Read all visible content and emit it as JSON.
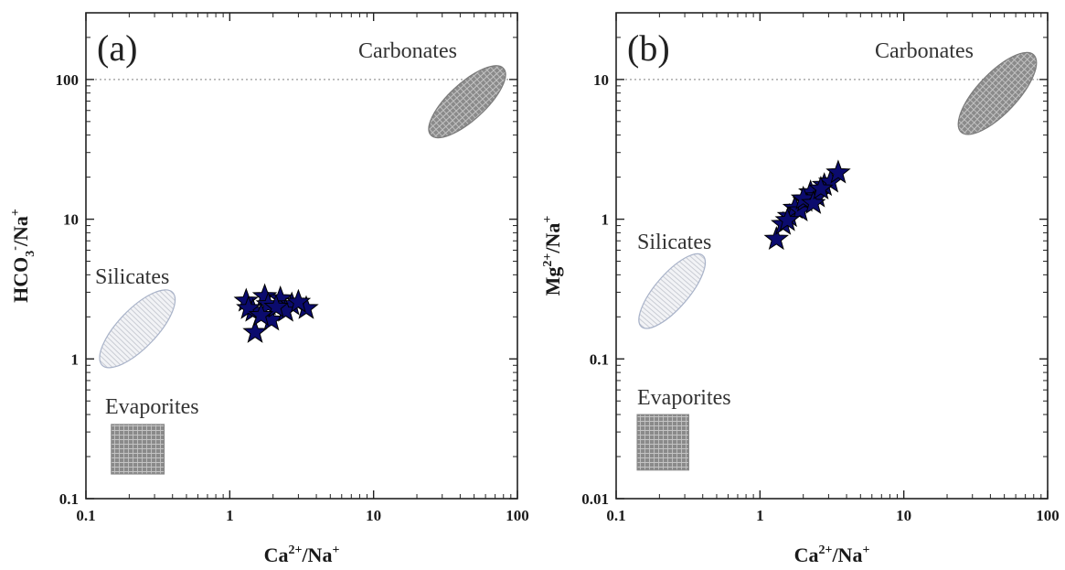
{
  "chart_data": [
    {
      "type": "scatter",
      "panel_label": "(a)",
      "xlabel": "Ca2+/Na+",
      "ylabel": "HCO3-/Na+",
      "xscale": "log",
      "yscale": "log",
      "xlim": [
        0.1,
        100
      ],
      "ylim": [
        0.1,
        300
      ],
      "x_ticks": [
        "0.1",
        "1",
        "10",
        "100"
      ],
      "y_ticks": [
        "0.1",
        "1",
        "10",
        "100"
      ],
      "reference_line_y": 100,
      "grid": false,
      "regions": [
        {
          "name": "Carbonates",
          "shape": "ellipse",
          "fill": "#8c8c8c",
          "pattern": "crosshatch",
          "x_range": [
            25,
            80
          ],
          "y_range": [
            40,
            120
          ]
        },
        {
          "name": "Silicates",
          "shape": "ellipse",
          "fill": "#e6e8ee",
          "pattern": "vertical-lines",
          "x_range": [
            0.13,
            0.4
          ],
          "y_range": [
            0.9,
            3.0
          ]
        },
        {
          "name": "Evaporites",
          "shape": "rectangle",
          "fill": "#9a9a9a",
          "pattern": "crosshatch",
          "x_range": [
            0.15,
            0.35
          ],
          "y_range": [
            0.15,
            0.34
          ]
        }
      ],
      "series": [
        {
          "marker": "star",
          "color": "#0b0b6e",
          "x": [
            1.3,
            1.75,
            2.25,
            2.7,
            3.4,
            1.5,
            1.95,
            1.45,
            1.85,
            2.45,
            3.0,
            1.35,
            2.1,
            1.65
          ],
          "y": [
            2.6,
            2.8,
            2.7,
            2.45,
            2.3,
            1.55,
            1.9,
            2.2,
            2.45,
            2.2,
            2.55,
            2.3,
            2.35,
            2.05
          ]
        }
      ]
    },
    {
      "type": "scatter",
      "panel_label": "(b)",
      "xlabel": "Ca2+/Na+",
      "ylabel": "Mg2+/Na+",
      "xscale": "log",
      "yscale": "log",
      "xlim": [
        0.1,
        100
      ],
      "ylim": [
        0.01,
        30
      ],
      "x_ticks": [
        "0.1",
        "1",
        "10",
        "100"
      ],
      "y_ticks": [
        "0.01",
        "0.1",
        "1",
        "10"
      ],
      "reference_line_y": 10,
      "grid": false,
      "regions": [
        {
          "name": "Carbonates",
          "shape": "ellipse",
          "fill": "#8c8c8c",
          "pattern": "crosshatch",
          "x_range": [
            25,
            80
          ],
          "y_range": [
            4.2,
            15
          ]
        },
        {
          "name": "Silicates",
          "shape": "ellipse",
          "fill": "#e6e8ee",
          "pattern": "vertical-lines",
          "x_range": [
            0.15,
            0.4
          ],
          "y_range": [
            0.17,
            0.55
          ]
        },
        {
          "name": "Evaporites",
          "shape": "rectangle",
          "fill": "#9a9a9a",
          "pattern": "crosshatch",
          "x_range": [
            0.14,
            0.32
          ],
          "y_range": [
            0.016,
            0.04
          ]
        }
      ],
      "series": [
        {
          "marker": "star",
          "color": "#0b0b6e",
          "x": [
            1.3,
            1.45,
            1.6,
            1.75,
            1.9,
            2.05,
            2.25,
            2.5,
            2.8,
            3.1,
            3.5,
            1.55,
            2.0,
            2.35,
            2.65
          ],
          "y": [
            0.72,
            0.92,
            1.05,
            1.2,
            1.15,
            1.35,
            1.55,
            1.45,
            1.75,
            1.85,
            2.15,
            0.98,
            1.4,
            1.3,
            1.65
          ]
        }
      ]
    }
  ]
}
